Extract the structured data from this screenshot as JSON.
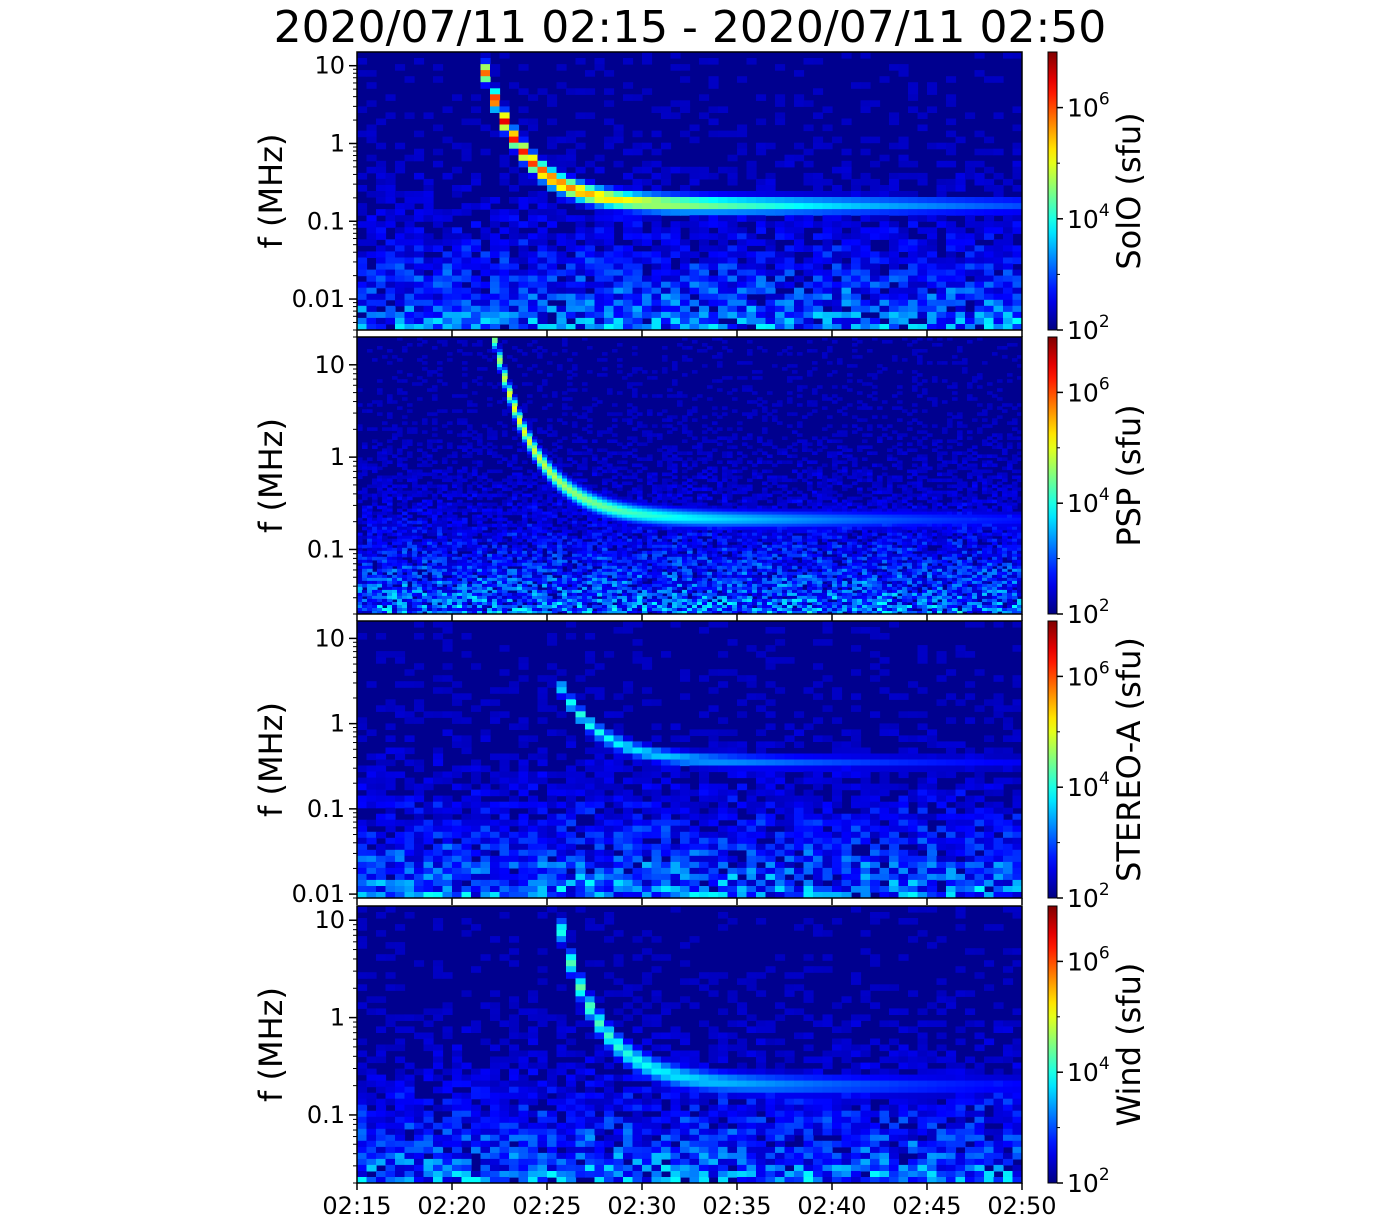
{
  "figure": {
    "title": "2020/07/11 02:15 - 2020/07/11 02:50"
  },
  "x_axis": {
    "tick_labels": [
      "02:15",
      "02:20",
      "02:25",
      "02:30",
      "02:35",
      "02:40",
      "02:45",
      "02:50"
    ]
  },
  "colors": {
    "colormap": "jet",
    "background_low": "#00008f"
  },
  "chart_data": [
    {
      "type": "heatmap",
      "instrument": "SolO",
      "ylabel": "f (MHz)",
      "colorbar_label": "SolO (sfu)",
      "y_scale": "log",
      "ylim": [
        0.004,
        15
      ],
      "yticks": [
        0.01,
        0.1,
        1,
        10
      ],
      "ytick_labels": [
        "0.01",
        "0.1",
        "1",
        "10"
      ],
      "colorbar_scale": "log",
      "clim": [
        100,
        10000000
      ],
      "colorbar_ticks": [
        100,
        10000,
        1000000
      ],
      "colorbar_tick_labels": [
        {
          "base": "10",
          "exp": "2"
        },
        {
          "base": "10",
          "exp": "4"
        },
        {
          "base": "10",
          "exp": "6"
        }
      ],
      "burst": {
        "start_minute": 6.5,
        "start_freq_mhz": 13,
        "end_freq_mhz": 0.16,
        "width": 0.12,
        "peak_log10_sfu": 6.8
      }
    },
    {
      "type": "heatmap",
      "instrument": "PSP",
      "ylabel": "f (MHz)",
      "colorbar_label": "PSP (sfu)",
      "y_scale": "log",
      "ylim": [
        0.02,
        20
      ],
      "yticks": [
        0.1,
        1,
        10
      ],
      "ytick_labels": [
        "0.1",
        "1",
        "10"
      ],
      "colorbar_scale": "log",
      "clim": [
        100,
        10000000
      ],
      "colorbar_ticks": [
        100,
        10000,
        1000000
      ],
      "colorbar_tick_labels": [
        {
          "base": "10",
          "exp": "2"
        },
        {
          "base": "10",
          "exp": "4"
        },
        {
          "base": "10",
          "exp": "6"
        }
      ],
      "burst": {
        "start_minute": 7.2,
        "start_freq_mhz": 20,
        "end_freq_mhz": 0.21,
        "width": 0.1,
        "peak_log10_sfu": 5.3
      }
    },
    {
      "type": "heatmap",
      "instrument": "STEREO-A",
      "ylabel": "f (MHz)",
      "colorbar_label": "STEREO-A (sfu)",
      "y_scale": "log",
      "ylim": [
        0.009,
        16
      ],
      "yticks": [
        0.01,
        0.1,
        1,
        10
      ],
      "ytick_labels": [
        "0.01",
        "0.1",
        "1",
        "10"
      ],
      "colorbar_scale": "log",
      "clim": [
        100,
        10000000
      ],
      "colorbar_ticks": [
        100,
        10000,
        1000000
      ],
      "colorbar_tick_labels": [
        {
          "base": "10",
          "exp": "2"
        },
        {
          "base": "10",
          "exp": "4"
        },
        {
          "base": "10",
          "exp": "6"
        }
      ],
      "burst": {
        "start_minute": 10.6,
        "start_freq_mhz": 3,
        "end_freq_mhz": 0.35,
        "width": 0.09,
        "peak_log10_sfu": 4.2
      }
    },
    {
      "type": "heatmap",
      "instrument": "Wind",
      "ylabel": "f (MHz)",
      "colorbar_label": "Wind (sfu)",
      "y_scale": "log",
      "ylim": [
        0.02,
        14
      ],
      "yticks": [
        0.1,
        1,
        10
      ],
      "ytick_labels": [
        "0.1",
        "1",
        "10"
      ],
      "colorbar_scale": "log",
      "clim": [
        100,
        10000000
      ],
      "colorbar_ticks": [
        100,
        10000,
        1000000
      ],
      "colorbar_tick_labels": [
        {
          "base": "10",
          "exp": "2"
        },
        {
          "base": "10",
          "exp": "4"
        },
        {
          "base": "10",
          "exp": "6"
        }
      ],
      "burst": {
        "start_minute": 10.5,
        "start_freq_mhz": 12,
        "end_freq_mhz": 0.2,
        "width": 0.12,
        "peak_log10_sfu": 4.5
      }
    }
  ]
}
